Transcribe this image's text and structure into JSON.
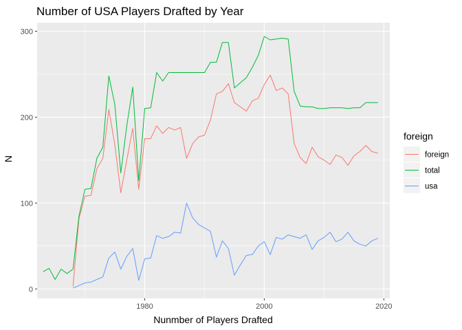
{
  "chart_data": {
    "type": "line",
    "title": "Number of USA Players Drafted by Year",
    "xlabel": "Nunmber of Players Drafted",
    "ylabel": "N",
    "xlim": [
      1962,
      2021
    ],
    "ylim": [
      -11,
      310
    ],
    "x_ticks": [
      1980,
      2000,
      2020
    ],
    "y_ticks": [
      0,
      100,
      200,
      300
    ],
    "grid": true,
    "legend": {
      "title": "foreign",
      "position": "right"
    },
    "series": [
      {
        "name": "foreign",
        "color": "#F8766D",
        "points": [
          [
            1968,
            3
          ],
          [
            1969,
            82
          ],
          [
            1970,
            108
          ],
          [
            1971,
            109
          ],
          [
            1972,
            140
          ],
          [
            1973,
            152
          ],
          [
            1974,
            209
          ],
          [
            1975,
            168
          ],
          [
            1976,
            112
          ],
          [
            1977,
            150
          ],
          [
            1978,
            187
          ],
          [
            1979,
            116
          ],
          [
            1980,
            175
          ],
          [
            1981,
            175
          ],
          [
            1982,
            190
          ],
          [
            1983,
            181
          ],
          [
            1984,
            188
          ],
          [
            1985,
            185
          ],
          [
            1986,
            188
          ],
          [
            1987,
            152
          ],
          [
            1988,
            169
          ],
          [
            1989,
            177
          ],
          [
            1990,
            179
          ],
          [
            1991,
            197
          ],
          [
            1992,
            227
          ],
          [
            1993,
            230
          ],
          [
            1994,
            239
          ],
          [
            1995,
            217
          ],
          [
            1996,
            212
          ],
          [
            1997,
            207
          ],
          [
            1998,
            219
          ],
          [
            1999,
            222
          ],
          [
            2000,
            238
          ],
          [
            2001,
            249
          ],
          [
            2002,
            231
          ],
          [
            2003,
            234
          ],
          [
            2004,
            227
          ],
          [
            2005,
            169
          ],
          [
            2006,
            153
          ],
          [
            2007,
            146
          ],
          [
            2008,
            165
          ],
          [
            2009,
            154
          ],
          [
            2010,
            150
          ],
          [
            2011,
            145
          ],
          [
            2012,
            156
          ],
          [
            2013,
            153
          ],
          [
            2014,
            144
          ],
          [
            2015,
            155
          ],
          [
            2016,
            160
          ],
          [
            2017,
            167
          ],
          [
            2018,
            160
          ],
          [
            2019,
            158
          ]
        ]
      },
      {
        "name": "total",
        "color": "#00BA38",
        "points": [
          [
            1963,
            20
          ],
          [
            1964,
            24
          ],
          [
            1965,
            11
          ],
          [
            1966,
            23
          ],
          [
            1967,
            18
          ],
          [
            1968,
            23
          ],
          [
            1969,
            85
          ],
          [
            1970,
            116
          ],
          [
            1971,
            117
          ],
          [
            1972,
            152
          ],
          [
            1973,
            165
          ],
          [
            1974,
            248
          ],
          [
            1975,
            215
          ],
          [
            1976,
            135
          ],
          [
            1977,
            190
          ],
          [
            1978,
            235
          ],
          [
            1979,
            126
          ],
          [
            1980,
            210
          ],
          [
            1981,
            211
          ],
          [
            1982,
            252
          ],
          [
            1983,
            242
          ],
          [
            1984,
            252
          ],
          [
            1985,
            252
          ],
          [
            1986,
            252
          ],
          [
            1987,
            252
          ],
          [
            1988,
            252
          ],
          [
            1989,
            252
          ],
          [
            1990,
            252
          ],
          [
            1991,
            264
          ],
          [
            1992,
            264
          ],
          [
            1993,
            287
          ],
          [
            1994,
            287
          ],
          [
            1995,
            234
          ],
          [
            1996,
            240
          ],
          [
            1997,
            246
          ],
          [
            1998,
            258
          ],
          [
            1999,
            272
          ],
          [
            2000,
            294
          ],
          [
            2001,
            290
          ],
          [
            2002,
            291
          ],
          [
            2003,
            292
          ],
          [
            2004,
            291
          ],
          [
            2005,
            230
          ],
          [
            2006,
            213
          ],
          [
            2007,
            212
          ],
          [
            2008,
            212
          ],
          [
            2009,
            210
          ],
          [
            2010,
            210
          ],
          [
            2011,
            211
          ],
          [
            2012,
            211
          ],
          [
            2013,
            211
          ],
          [
            2014,
            210
          ],
          [
            2015,
            211
          ],
          [
            2016,
            211
          ],
          [
            2017,
            217
          ],
          [
            2018,
            217
          ],
          [
            2019,
            217
          ]
        ]
      },
      {
        "name": "usa",
        "color": "#619CFF",
        "points": [
          [
            1968,
            1
          ],
          [
            1969,
            4
          ],
          [
            1970,
            7
          ],
          [
            1971,
            8
          ],
          [
            1972,
            11
          ],
          [
            1973,
            14
          ],
          [
            1974,
            36
          ],
          [
            1975,
            43
          ],
          [
            1976,
            23
          ],
          [
            1977,
            38
          ],
          [
            1978,
            47
          ],
          [
            1979,
            10
          ],
          [
            1980,
            35
          ],
          [
            1981,
            36
          ],
          [
            1982,
            62
          ],
          [
            1983,
            59
          ],
          [
            1984,
            61
          ],
          [
            1985,
            66
          ],
          [
            1986,
            65
          ],
          [
            1987,
            100
          ],
          [
            1988,
            83
          ],
          [
            1989,
            75
          ],
          [
            1990,
            71
          ],
          [
            1991,
            67
          ],
          [
            1992,
            37
          ],
          [
            1993,
            56
          ],
          [
            1994,
            47
          ],
          [
            1995,
            16
          ],
          [
            1996,
            28
          ],
          [
            1997,
            39
          ],
          [
            1998,
            40
          ],
          [
            1999,
            50
          ],
          [
            2000,
            55
          ],
          [
            2001,
            40
          ],
          [
            2002,
            60
          ],
          [
            2003,
            58
          ],
          [
            2004,
            63
          ],
          [
            2005,
            61
          ],
          [
            2006,
            59
          ],
          [
            2007,
            63
          ],
          [
            2008,
            46
          ],
          [
            2009,
            56
          ],
          [
            2010,
            60
          ],
          [
            2011,
            66
          ],
          [
            2012,
            55
          ],
          [
            2013,
            58
          ],
          [
            2014,
            66
          ],
          [
            2015,
            56
          ],
          [
            2016,
            52
          ],
          [
            2017,
            50
          ],
          [
            2018,
            56
          ],
          [
            2019,
            59
          ]
        ]
      }
    ]
  }
}
